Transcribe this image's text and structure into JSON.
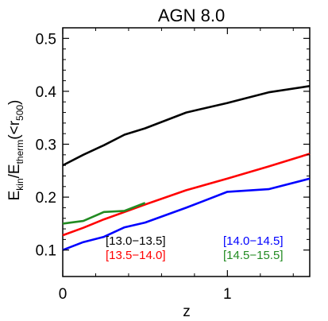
{
  "chart_data": {
    "type": "line",
    "title": "AGN 8.0",
    "xlabel": "z",
    "ylabel": {
      "main": "E",
      "sub1": "kin",
      "slash": "/E",
      "sub2": "therm",
      "paren_open": "(<r",
      "sub3": "500",
      "paren_close": ")"
    },
    "xlim": [
      0,
      1.5
    ],
    "ylim": [
      0.05,
      0.52
    ],
    "xticks": [
      0,
      1
    ],
    "xtick_labels": [
      "0",
      "1"
    ],
    "yticks": [
      0.1,
      0.2,
      0.3,
      0.4,
      0.5
    ],
    "ytick_labels": [
      "0.1",
      "0.2",
      "0.3",
      "0.4",
      "0.5"
    ],
    "legend_placement": "bottom",
    "series": [
      {
        "name": "[13.0−13.5]",
        "color": "#000000",
        "x": [
          0,
          0.125,
          0.25,
          0.375,
          0.5,
          0.75,
          1.0,
          1.25,
          1.5
        ],
        "y": [
          0.26,
          0.28,
          0.298,
          0.318,
          0.33,
          0.36,
          0.378,
          0.398,
          0.41
        ]
      },
      {
        "name": "[13.5−14.0]",
        "color": "#ff0000",
        "x": [
          0,
          0.125,
          0.25,
          0.375,
          0.5,
          0.75,
          1.0,
          1.25,
          1.5
        ],
        "y": [
          0.128,
          0.142,
          0.158,
          0.172,
          0.186,
          0.213,
          0.235,
          0.258,
          0.282
        ]
      },
      {
        "name": "[14.0−14.5]",
        "color": "#0000ff",
        "x": [
          0,
          0.125,
          0.25,
          0.375,
          0.5,
          0.75,
          1.0,
          1.25,
          1.5
        ],
        "y": [
          0.1,
          0.115,
          0.125,
          0.143,
          0.152,
          0.18,
          0.21,
          0.215,
          0.235
        ]
      },
      {
        "name": "[14.5−15.5]",
        "color": "#228b22",
        "x": [
          0,
          0.125,
          0.25,
          0.375,
          0.5
        ],
        "y": [
          0.15,
          0.155,
          0.172,
          0.174,
          0.189
        ]
      }
    ]
  }
}
